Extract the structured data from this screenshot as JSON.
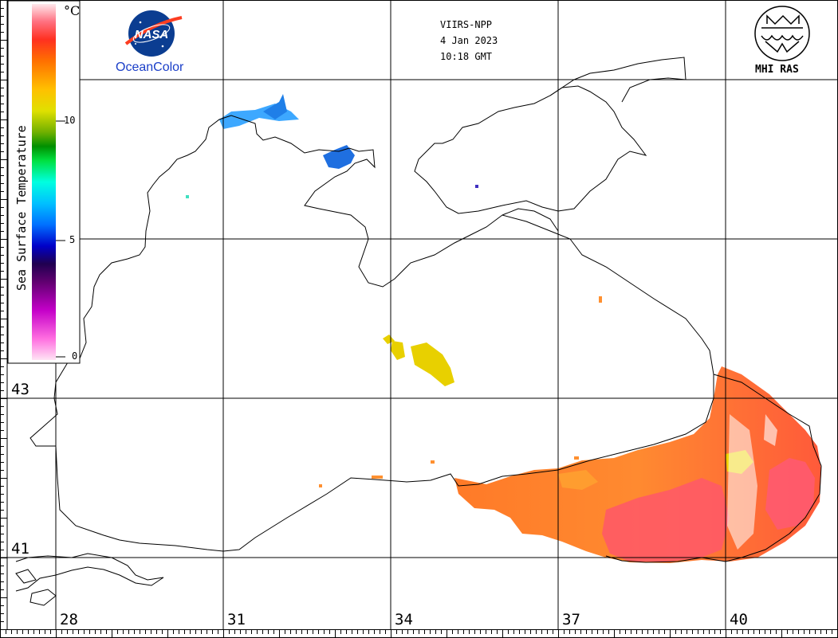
{
  "header": {
    "sensor": "VIIRS-NPP",
    "date": "4 Jan 2023",
    "time": "10:18 GMT"
  },
  "logos": {
    "nasa_text": "NASA",
    "oceancolor": "OceanColor",
    "mhi": "MHI RAS"
  },
  "colorbar": {
    "title": "Sea Surface Temperature",
    "unit": "°C",
    "ticks": [
      "10",
      "5",
      "0"
    ],
    "colors": [
      "#ffe4f2",
      "#ff3f9b",
      "#d400c8",
      "#7a007a",
      "#2a0060",
      "#0000d0",
      "#0066ff",
      "#00b0ff",
      "#00ffe0",
      "#00ff60",
      "#00b000",
      "#9ad000",
      "#f0f000",
      "#ffb000",
      "#ff6a00",
      "#ff2a20",
      "#ff6a7a",
      "#ffd0d8"
    ]
  },
  "grid": {
    "lon_labels": [
      "28",
      "31",
      "34",
      "37",
      "40"
    ],
    "lat_labels": [
      "43",
      "41"
    ]
  },
  "colors": {
    "warm_sst": "#ff8a30",
    "hot_sst": "#ff5a5a",
    "mid_sst": "#e8d000",
    "cold_sst": "#3da0ff"
  }
}
